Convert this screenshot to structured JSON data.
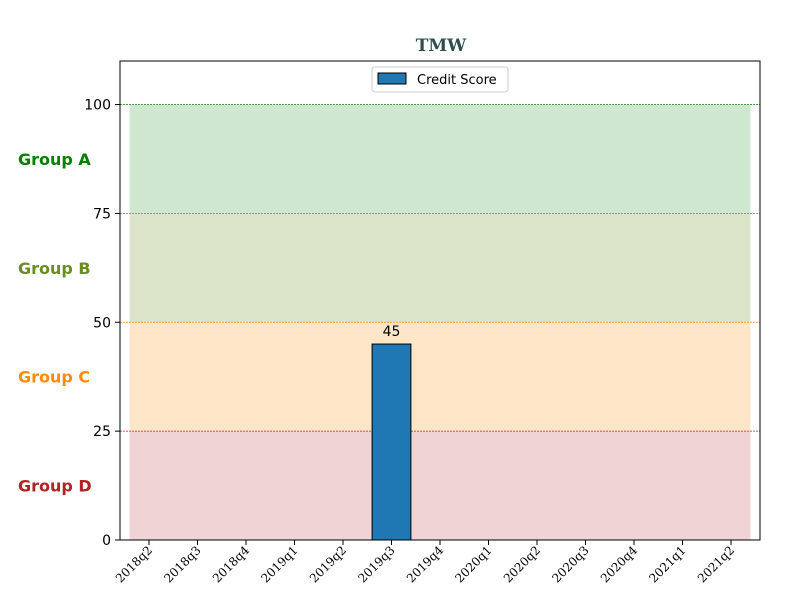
{
  "chart_data": {
    "type": "bar",
    "title": "TMW",
    "title_color": "#2f4f4f",
    "xlabel": "",
    "ylabel": "",
    "categories": [
      "2018q2",
      "2018q3",
      "2018q4",
      "2019q1",
      "2019q2",
      "2019q3",
      "2019q4",
      "2020q1",
      "2020q2",
      "2020q3",
      "2020q4",
      "2021q1",
      "2021q2"
    ],
    "series": [
      {
        "name": "Credit Score",
        "color": "#1f77b4",
        "values": [
          null,
          null,
          null,
          null,
          null,
          45,
          null,
          null,
          null,
          null,
          null,
          null,
          null
        ]
      }
    ],
    "data_labels": [
      {
        "category": "2019q3",
        "value": 45,
        "text": "45"
      }
    ],
    "ylim": [
      0,
      110
    ],
    "yticks": [
      {
        "value": 0,
        "label": "0"
      },
      {
        "value": 25,
        "label": "25"
      },
      {
        "value": 50,
        "label": "50"
      },
      {
        "value": 75,
        "label": "75"
      },
      {
        "value": 100,
        "label": "100"
      }
    ],
    "bands": [
      {
        "name": "Group A",
        "from": 75,
        "to": 100,
        "fill": "#cfe6cf",
        "line": "#2e8b2e",
        "label_color": "#008000"
      },
      {
        "name": "Group B",
        "from": 50,
        "to": 75,
        "fill": "#dbe3c9",
        "line": "#6b8e23",
        "label_color": "#6b8e23"
      },
      {
        "name": "Group C",
        "from": 25,
        "to": 50,
        "fill": "#ffe6c9",
        "line": "#ff8c00",
        "label_color": "#ff8c00"
      },
      {
        "name": "Group D",
        "from": 0,
        "to": 25,
        "fill": "#efd3d5",
        "line": "#b22222",
        "label_color": "#b22222"
      }
    ],
    "legend": {
      "position": "top-center"
    },
    "grid": false
  }
}
